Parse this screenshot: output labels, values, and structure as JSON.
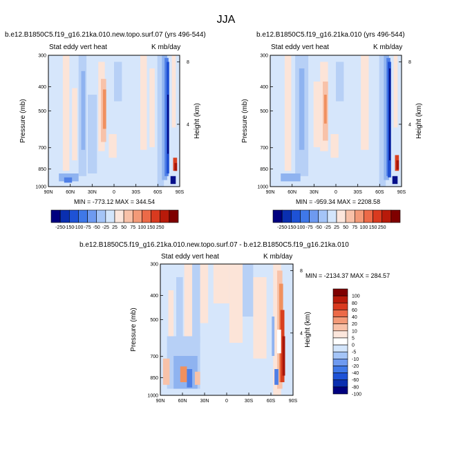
{
  "figure": {
    "title": "JJA"
  },
  "panels": [
    {
      "title": "b.e12.B1850C5.f19_g16.21ka.010.new.topo.surf.07 (yrs 496-544)",
      "left_label": "Stat eddy vert heat",
      "right_label": "K mb/day",
      "y_label": "Pressure (mb)",
      "y2_label": "Height (km)",
      "min_max": "MIN = -773.12  MAX = 344.54"
    },
    {
      "title": "b.e12.B1850C5.f19_g16.21ka.010 (yrs 496-544)",
      "left_label": "Stat eddy vert heat",
      "right_label": "K mb/day",
      "y_label": "Pressure (mb)",
      "y2_label": "Height (km)",
      "min_max": "MIN = -959.34  MAX = 2208.58"
    },
    {
      "title": "b.e12.B1850C5.f19_g16.21ka.010.new.topo.surf.07 - b.e12.B1850C5.f19_g16.21ka.010",
      "left_label": "Stat eddy vert heat",
      "right_label": "K mb/day",
      "y_label": "Pressure (mb)",
      "y2_label": "Height (km)",
      "min_max": "MIN = -2134.37  MAX = 284.57"
    }
  ],
  "colorbars": {
    "horizontal": {
      "labels": [
        "-250",
        "-150",
        "-100",
        "-75",
        "-50",
        "-25",
        "25",
        "50",
        "75",
        "100",
        "150",
        "250"
      ],
      "colors": [
        "#00007F",
        "#0A2FB0",
        "#1E52D6",
        "#3F78E8",
        "#6E9AF0",
        "#A4C4F7",
        "#D3E5FB",
        "#FCE6DC",
        "#F8C1A8",
        "#F39A78",
        "#EC6A48",
        "#D93A1F",
        "#B81A0A",
        "#7F0000"
      ]
    },
    "vertical": {
      "labels": [
        "100",
        "80",
        "60",
        "40",
        "20",
        "10",
        "5",
        "0",
        "-5",
        "-10",
        "-20",
        "-40",
        "-60",
        "-80",
        "-100"
      ],
      "colors": [
        "#7F0000",
        "#B81A0A",
        "#D93A1F",
        "#EC6A48",
        "#F39A78",
        "#F8C1A8",
        "#FCE6DC",
        "#FFFFFF",
        "#D3E5FB",
        "#A4C4F7",
        "#6E9AF0",
        "#3F78E8",
        "#1E52D6",
        "#0A2FB0",
        "#00007F"
      ]
    }
  },
  "chart_data": [
    {
      "type": "heatmap",
      "title": "b.e12.B1850C5.f19_g16.21ka.010.new.topo.surf.07 (yrs 496-544)",
      "variable": "Stat eddy vert heat",
      "units": "K mb/day",
      "x_ticks": [
        "90N",
        "60N",
        "30N",
        "0",
        "30S",
        "60S",
        "90S"
      ],
      "x_values": [
        90,
        60,
        30,
        0,
        -30,
        -60,
        -90
      ],
      "xlim": [
        90,
        -90
      ],
      "y_ticks": [
        "300",
        "400",
        "500",
        "700",
        "850",
        "1000"
      ],
      "y_values": [
        300,
        400,
        500,
        700,
        850,
        1000
      ],
      "ylim": [
        1000,
        300
      ],
      "y_scale": "log",
      "ylabel": "Pressure (mb)",
      "y2_ticks": [
        "8",
        "4"
      ],
      "y2_values": [
        8,
        4
      ],
      "y2label": "Height (km)",
      "min": -773.12,
      "max": 344.54
    },
    {
      "type": "heatmap",
      "title": "b.e12.B1850C5.f19_g16.21ka.010 (yrs 496-544)",
      "variable": "Stat eddy vert heat",
      "units": "K mb/day",
      "x_ticks": [
        "90N",
        "60N",
        "30N",
        "0",
        "30S",
        "60S",
        "90S"
      ],
      "x_values": [
        90,
        60,
        30,
        0,
        -30,
        -60,
        -90
      ],
      "xlim": [
        90,
        -90
      ],
      "y_ticks": [
        "300",
        "400",
        "500",
        "700",
        "850",
        "1000"
      ],
      "y_values": [
        300,
        400,
        500,
        700,
        850,
        1000
      ],
      "ylim": [
        1000,
        300
      ],
      "y_scale": "log",
      "ylabel": "Pressure (mb)",
      "y2_ticks": [
        "8",
        "4"
      ],
      "y2_values": [
        8,
        4
      ],
      "y2label": "Height (km)",
      "min": -959.34,
      "max": 2208.58
    },
    {
      "type": "heatmap",
      "title": "b.e12.B1850C5.f19_g16.21ka.010.new.topo.surf.07 - b.e12.B1850C5.f19_g16.21ka.010",
      "variable": "Stat eddy vert heat",
      "units": "K mb/day",
      "x_ticks": [
        "90N",
        "60N",
        "30N",
        "0",
        "30S",
        "60S",
        "90S"
      ],
      "x_values": [
        90,
        60,
        30,
        0,
        -30,
        -60,
        -90
      ],
      "xlim": [
        90,
        -90
      ],
      "y_ticks": [
        "300",
        "400",
        "500",
        "700",
        "850",
        "1000"
      ],
      "y_values": [
        300,
        400,
        500,
        700,
        850,
        1000
      ],
      "ylim": [
        1000,
        300
      ],
      "y_scale": "log",
      "ylabel": "Pressure (mb)",
      "y2_ticks": [
        "8",
        "4"
      ],
      "y2_values": [
        8,
        4
      ],
      "y2label": "Height (km)",
      "min": -2134.37,
      "max": 284.57
    }
  ]
}
